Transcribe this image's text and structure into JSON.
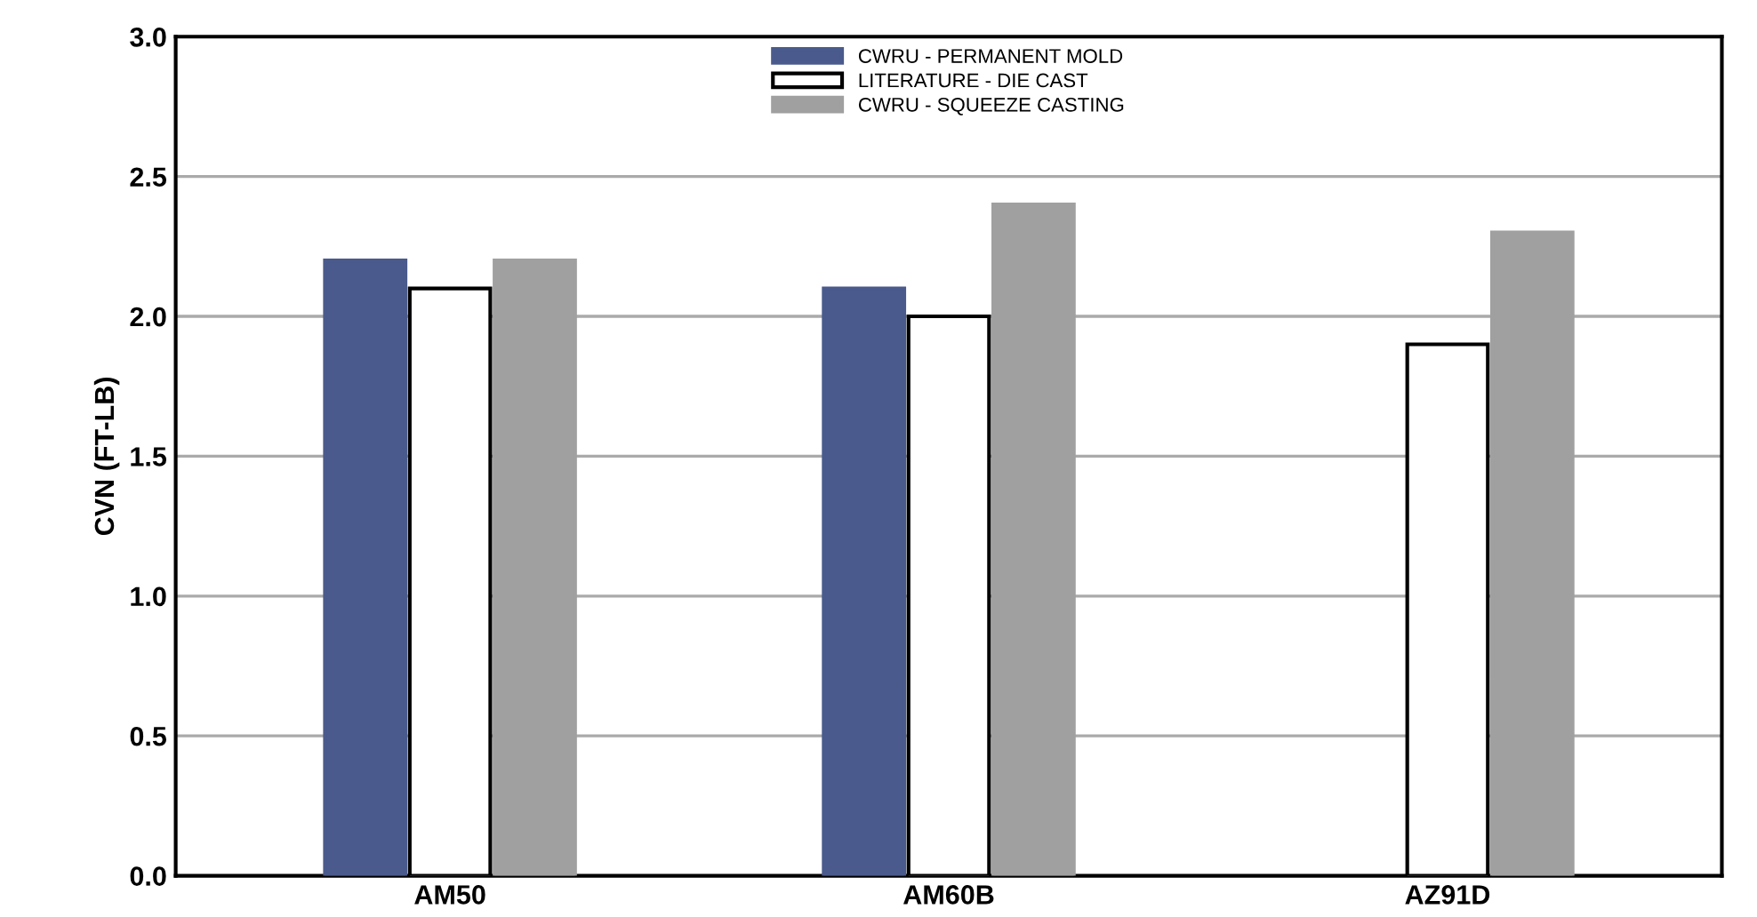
{
  "chart_data": {
    "type": "bar",
    "ylabel": "CVN (FT-LB)",
    "categories": [
      "AM50",
      "AM60B",
      "AZ91D"
    ],
    "series": [
      {
        "name": "CWRU - PERMANENT MOLD",
        "color": "#4a5a8c",
        "values": [
          2.2,
          2.1,
          null
        ]
      },
      {
        "name": "LITERATURE - DIE CAST",
        "color": "#ffffff",
        "values": [
          2.1,
          2.0,
          1.9
        ]
      },
      {
        "name": "CWRU - SQUEEZE CASTING",
        "color": "#a0a0a0",
        "values": [
          2.2,
          2.4,
          2.3
        ]
      }
    ],
    "ylim": [
      0,
      3
    ],
    "yticks": [
      {
        "value": 0,
        "label": "0.0"
      },
      {
        "value": 0.5,
        "label": "0.5"
      },
      {
        "value": 1,
        "label": "1.0"
      },
      {
        "value": 1.5,
        "label": "1.5"
      },
      {
        "value": 2,
        "label": "2.0"
      },
      {
        "value": 2.5,
        "label": "2.5"
      },
      {
        "value": 3,
        "label": "3.0"
      }
    ],
    "grid": "y",
    "legend": "top"
  }
}
